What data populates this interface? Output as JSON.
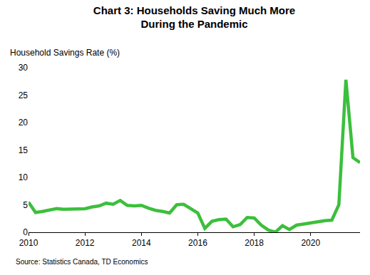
{
  "chart_data": {
    "type": "line",
    "title": "Chart 3: Households Saving Much More\nDuring the Pandemic",
    "y_label": "Household Savings Rate (%)",
    "source": "Source: Statistics Canada, TD Economics",
    "categories": [
      "2010",
      null,
      null,
      null,
      null,
      null,
      null,
      null,
      "2012",
      null,
      null,
      null,
      null,
      null,
      null,
      null,
      "2014",
      null,
      null,
      null,
      null,
      null,
      null,
      null,
      "2016",
      null,
      null,
      null,
      null,
      null,
      null,
      null,
      "2018",
      null,
      null,
      null,
      null,
      null,
      null,
      null,
      "2020",
      null,
      null,
      null,
      null,
      null,
      null,
      null
    ],
    "values": [
      5.5,
      3.6,
      3.8,
      4.1,
      4.3,
      4.2,
      4.2,
      4.2,
      4.3,
      4.6,
      4.8,
      5.3,
      5.1,
      5.8,
      4.9,
      4.8,
      4.9,
      4.4,
      4.0,
      3.8,
      3.5,
      5.0,
      5.1,
      4.3,
      3.5,
      0.7,
      2.0,
      2.3,
      2.4,
      1.0,
      1.4,
      2.7,
      2.6,
      1.3,
      0.4,
      0.0,
      1.2,
      0.5,
      1.3,
      1.5,
      1.7,
      2.0,
      2.1,
      2.2,
      5.0,
      27.8,
      13.6,
      12.7
    ],
    "color": "#3cbf3c",
    "ylim": [
      0,
      30
    ],
    "yticks": [
      0,
      5,
      10,
      15,
      20,
      25,
      30
    ],
    "grid": false
  }
}
